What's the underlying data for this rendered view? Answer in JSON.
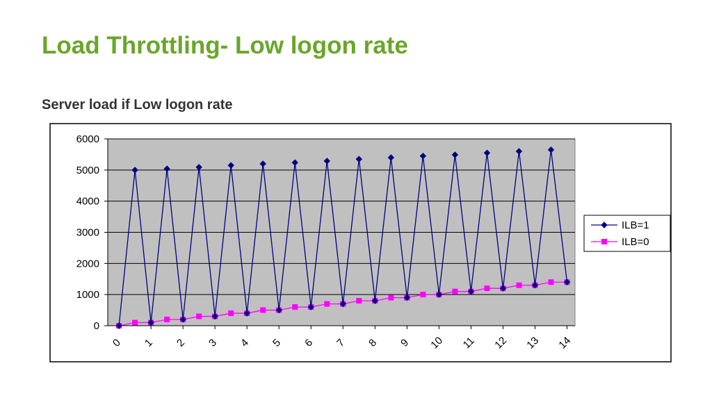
{
  "slide": {
    "title": "Load Throttling- Low logon rate",
    "subtitle": "Server load if Low logon rate"
  },
  "chart_data": {
    "type": "line",
    "title": "",
    "xlabel": "",
    "ylabel": "",
    "ylim": [
      0,
      6000
    ],
    "yticks": [
      "0",
      "1000",
      "2000",
      "3000",
      "4000",
      "5000",
      "6000"
    ],
    "xticks": [
      "0",
      "1",
      "2",
      "3",
      "4",
      "5",
      "6",
      "7",
      "8",
      "9",
      "10",
      "11",
      "12",
      "13",
      "14"
    ],
    "xlim": [
      0,
      14.6
    ],
    "grid": true,
    "legend_position": "right",
    "plot_background": "#c0c0c0",
    "series": [
      {
        "name": "ILB=1",
        "color": "#000080",
        "marker": "diamond",
        "x": [
          0.35,
          0.85,
          1.35,
          1.85,
          2.35,
          2.85,
          3.35,
          3.85,
          4.35,
          4.85,
          5.35,
          5.85,
          6.35,
          6.85,
          7.35,
          7.85,
          8.35,
          8.85,
          9.35,
          9.85,
          10.35,
          10.85,
          11.35,
          11.85,
          12.35,
          12.85,
          13.35,
          13.85,
          14.35
        ],
        "y": [
          0,
          5000,
          100,
          5040,
          200,
          5090,
          300,
          5150,
          400,
          5200,
          500,
          5240,
          600,
          5290,
          700,
          5350,
          800,
          5400,
          900,
          5450,
          1000,
          5490,
          1100,
          5550,
          1200,
          5600,
          1300,
          5650,
          1400
        ]
      },
      {
        "name": "ILB=0",
        "color": "#ff00ff",
        "marker": "square",
        "x": [
          0.35,
          0.85,
          1.35,
          1.85,
          2.35,
          2.85,
          3.35,
          3.85,
          4.35,
          4.85,
          5.35,
          5.85,
          6.35,
          6.85,
          7.35,
          7.85,
          8.35,
          8.85,
          9.35,
          9.85,
          10.35,
          10.85,
          11.35,
          11.85,
          12.35,
          12.85,
          13.35,
          13.85,
          14.35
        ],
        "y": [
          0,
          100,
          100,
          200,
          200,
          300,
          300,
          400,
          400,
          500,
          500,
          600,
          600,
          700,
          700,
          800,
          800,
          900,
          900,
          1000,
          1000,
          1100,
          1100,
          1200,
          1200,
          1300,
          1300,
          1400,
          1400
        ]
      }
    ]
  }
}
